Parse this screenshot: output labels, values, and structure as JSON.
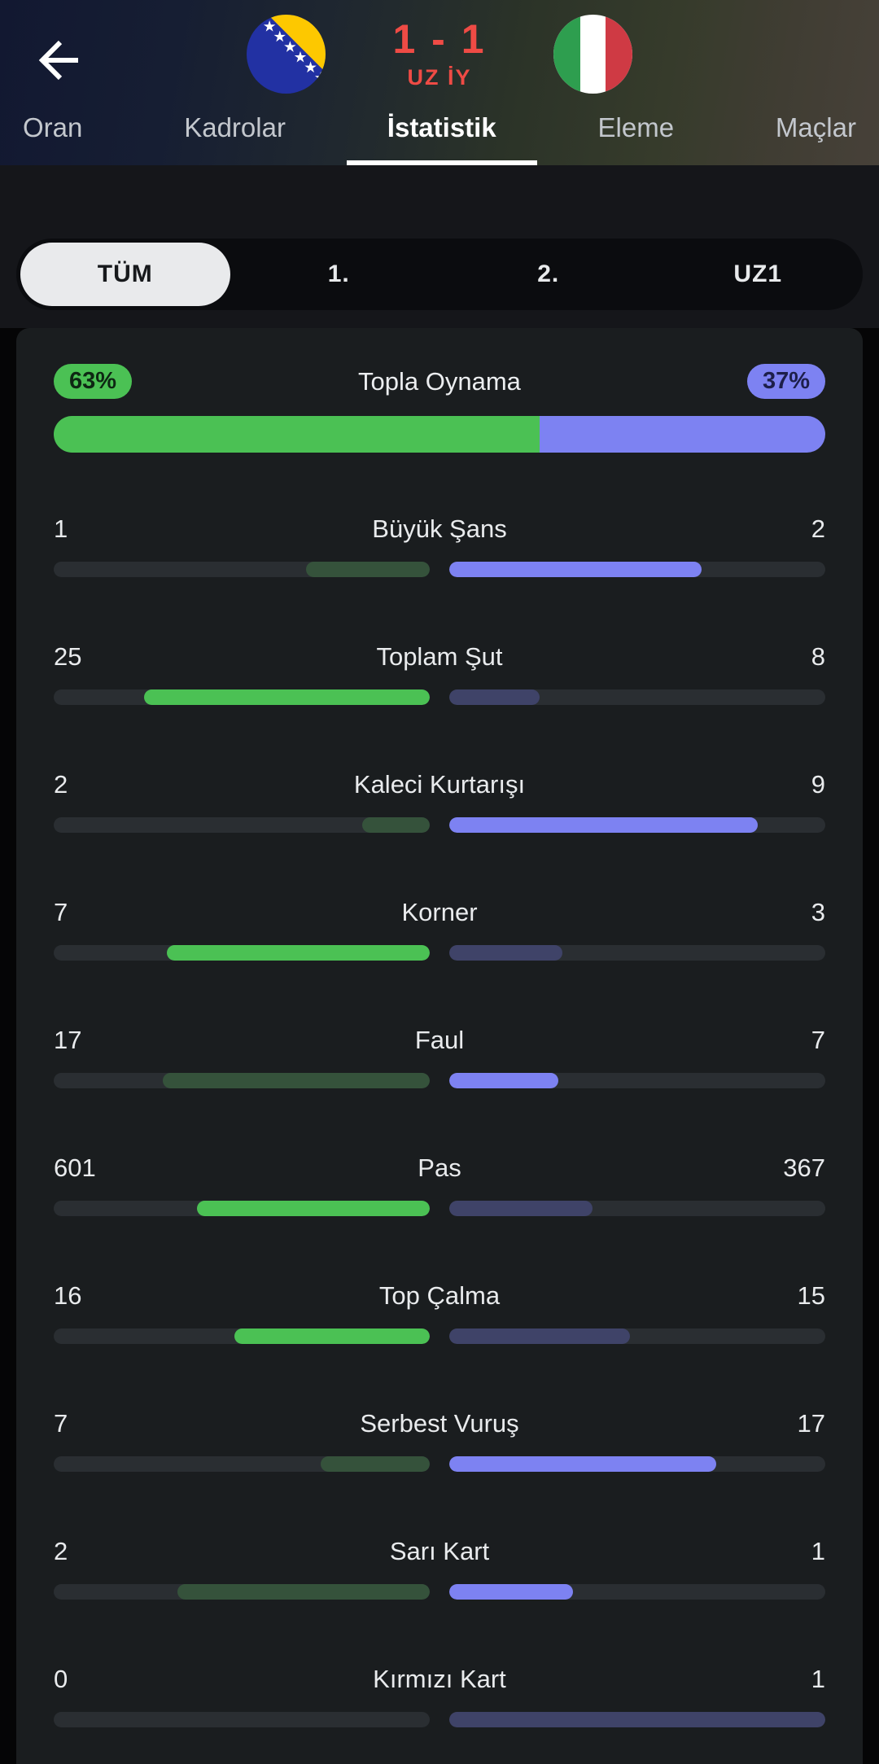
{
  "header": {
    "score": "1 - 1",
    "status": "UZ İY",
    "home_flag": "bosnia-herzegovina-flag",
    "away_flag": "italy-flag"
  },
  "tabs": [
    {
      "key": "oran",
      "label": "Oran",
      "active": false
    },
    {
      "key": "kadrolar",
      "label": "Kadrolar",
      "active": false
    },
    {
      "key": "istatistik",
      "label": "İstatistik",
      "active": true
    },
    {
      "key": "eleme",
      "label": "Eleme",
      "active": false
    },
    {
      "key": "maclar",
      "label": "Maçlar",
      "active": false
    }
  ],
  "filters": [
    {
      "key": "tum",
      "label": "TÜM",
      "selected": true
    },
    {
      "key": "1",
      "label": "1.",
      "selected": false
    },
    {
      "key": "2",
      "label": "2.",
      "selected": false
    },
    {
      "key": "uz1",
      "label": "UZ1",
      "selected": false
    }
  ],
  "possession": {
    "label": "Topla Oynama",
    "home_value": "63%",
    "away_value": "37%",
    "home_pct": 63,
    "away_pct": 37
  },
  "stats": [
    {
      "key": "buyuk-sans",
      "label": "Büyük Şans",
      "home": "1",
      "away": "2",
      "home_pct": 33,
      "away_pct": 67,
      "highlight": "away"
    },
    {
      "key": "toplam-sut",
      "label": "Toplam Şut",
      "home": "25",
      "away": "8",
      "home_pct": 76,
      "away_pct": 24,
      "highlight": "home"
    },
    {
      "key": "kaleci-kurtarisi",
      "label": "Kaleci Kurtarışı",
      "home": "2",
      "away": "9",
      "home_pct": 18,
      "away_pct": 82,
      "highlight": "away"
    },
    {
      "key": "korner",
      "label": "Korner",
      "home": "7",
      "away": "3",
      "home_pct": 70,
      "away_pct": 30,
      "highlight": "home"
    },
    {
      "key": "faul",
      "label": "Faul",
      "home": "17",
      "away": "7",
      "home_pct": 71,
      "away_pct": 29,
      "highlight": "away"
    },
    {
      "key": "pas",
      "label": "Pas",
      "home": "601",
      "away": "367",
      "home_pct": 62,
      "away_pct": 38,
      "highlight": "home"
    },
    {
      "key": "top-calma",
      "label": "Top Çalma",
      "home": "16",
      "away": "15",
      "home_pct": 52,
      "away_pct": 48,
      "highlight": "home"
    },
    {
      "key": "serbest-vurus",
      "label": "Serbest Vuruş",
      "home": "7",
      "away": "17",
      "home_pct": 29,
      "away_pct": 71,
      "highlight": "away"
    },
    {
      "key": "sari-kart",
      "label": "Sarı Kart",
      "home": "2",
      "away": "1",
      "home_pct": 67,
      "away_pct": 33,
      "highlight": "away"
    },
    {
      "key": "kirmizi-kart",
      "label": "Kırmızı Kart",
      "home": "0",
      "away": "1",
      "home_pct": 0,
      "away_pct": 100,
      "highlight": "none"
    }
  ],
  "colors": {
    "green_bright": "#4bc154",
    "green_dim": "#35523b",
    "purple_bright": "#7d82f2",
    "purple_dim": "#3f4368",
    "track": "#2a2e32",
    "score_red": "#ef4b45",
    "card_bg": "#1a1d1f",
    "page_bg": "#050506"
  }
}
